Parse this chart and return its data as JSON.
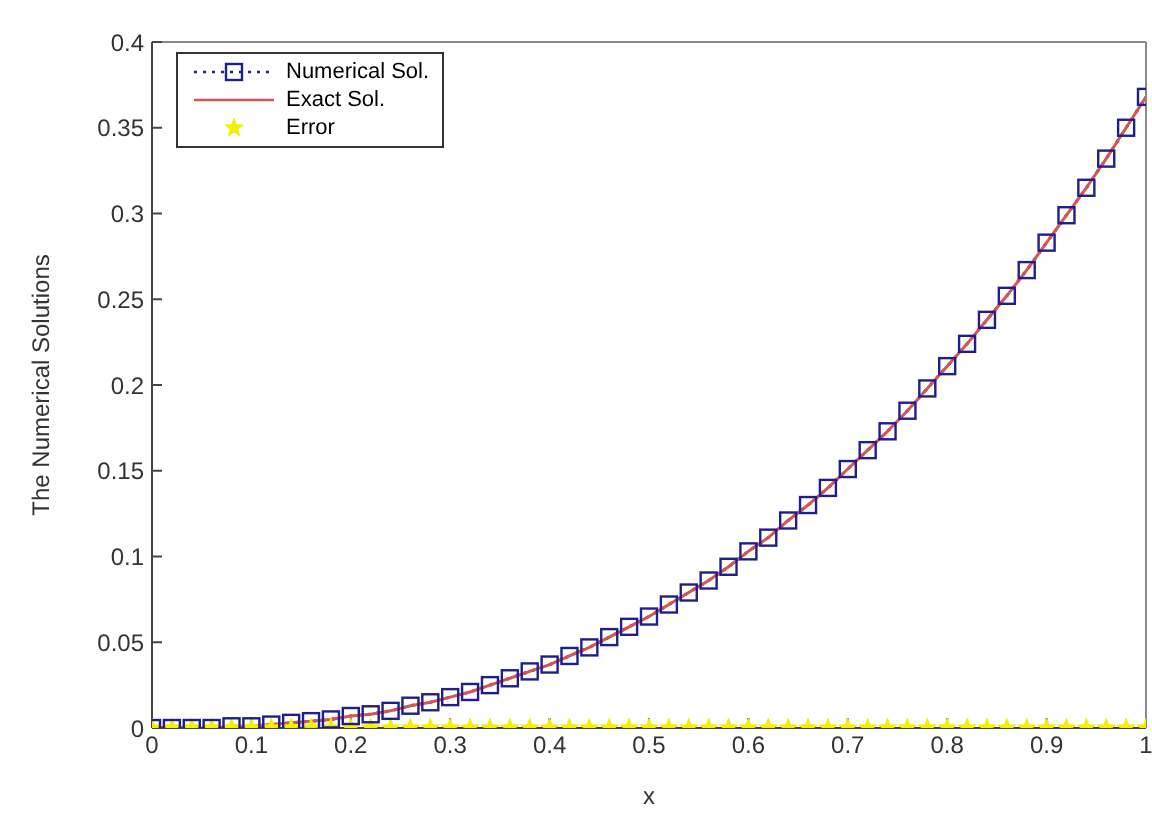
{
  "chart_data": {
    "type": "line",
    "xlabel": "x",
    "ylabel": "The Numerical Solutions",
    "x": [
      0,
      0.02,
      0.04,
      0.06,
      0.08,
      0.1,
      0.12,
      0.14,
      0.16,
      0.18,
      0.2,
      0.22,
      0.24,
      0.26,
      0.28,
      0.3,
      0.32,
      0.34,
      0.36,
      0.38,
      0.4,
      0.42,
      0.44,
      0.46,
      0.48,
      0.5,
      0.52,
      0.54,
      0.56,
      0.58,
      0.6,
      0.62,
      0.64,
      0.66,
      0.68,
      0.7,
      0.72,
      0.74,
      0.76,
      0.78,
      0.8,
      0.82,
      0.84,
      0.86,
      0.88,
      0.9,
      0.92,
      0.94,
      0.96,
      0.98,
      1
    ],
    "series": [
      {
        "name": "Numerical Sol.",
        "color": "#1f1f8c",
        "marker": "square",
        "line_style": "dotted",
        "values": [
          0,
          0,
          0,
          0,
          0.001,
          0.001,
          0.002,
          0.003,
          0.004,
          0.005,
          0.007,
          0.008,
          0.01,
          0.013,
          0.015,
          0.018,
          0.021,
          0.025,
          0.029,
          0.033,
          0.037,
          0.042,
          0.047,
          0.053,
          0.059,
          0.065,
          0.072,
          0.079,
          0.086,
          0.094,
          0.103,
          0.111,
          0.121,
          0.13,
          0.14,
          0.151,
          0.162,
          0.173,
          0.185,
          0.198,
          0.211,
          0.224,
          0.238,
          0.252,
          0.267,
          0.283,
          0.299,
          0.315,
          0.332,
          0.35,
          0.368
        ]
      },
      {
        "name": "Exact Sol.",
        "color": "#d9534f",
        "marker": "none",
        "line_style": "solid",
        "values": [
          0,
          0,
          0,
          0,
          0.001,
          0.001,
          0.002,
          0.003,
          0.004,
          0.005,
          0.007,
          0.008,
          0.01,
          0.013,
          0.015,
          0.018,
          0.021,
          0.025,
          0.029,
          0.033,
          0.037,
          0.042,
          0.047,
          0.053,
          0.059,
          0.065,
          0.072,
          0.079,
          0.086,
          0.094,
          0.103,
          0.111,
          0.121,
          0.13,
          0.14,
          0.151,
          0.162,
          0.173,
          0.185,
          0.198,
          0.211,
          0.224,
          0.238,
          0.252,
          0.267,
          0.283,
          0.299,
          0.315,
          0.332,
          0.35,
          0.368
        ]
      },
      {
        "name": "Error",
        "type": "scatter",
        "color": "#f2f200",
        "marker": "star",
        "values": [
          0,
          0,
          0,
          0,
          0,
          0,
          0,
          0,
          0,
          0,
          0,
          0,
          0,
          0,
          0,
          0,
          0,
          0,
          0,
          0,
          0,
          0,
          0,
          0,
          0,
          0,
          0,
          0,
          0,
          0,
          0,
          0,
          0,
          0,
          0,
          0,
          0,
          0,
          0,
          0,
          0,
          0,
          0,
          0,
          0,
          0,
          0,
          0,
          0,
          0,
          0
        ]
      }
    ],
    "xlim": [
      0,
      1
    ],
    "xticks": [
      0,
      0.1,
      0.2,
      0.3,
      0.4,
      0.5,
      0.6,
      0.7,
      0.8,
      0.9,
      1
    ],
    "ylim": [
      0,
      0.4
    ],
    "yticks": [
      0,
      0.05,
      0.1,
      0.15,
      0.2,
      0.25,
      0.3,
      0.35,
      0.4
    ],
    "grid": false,
    "legend": "top left"
  }
}
